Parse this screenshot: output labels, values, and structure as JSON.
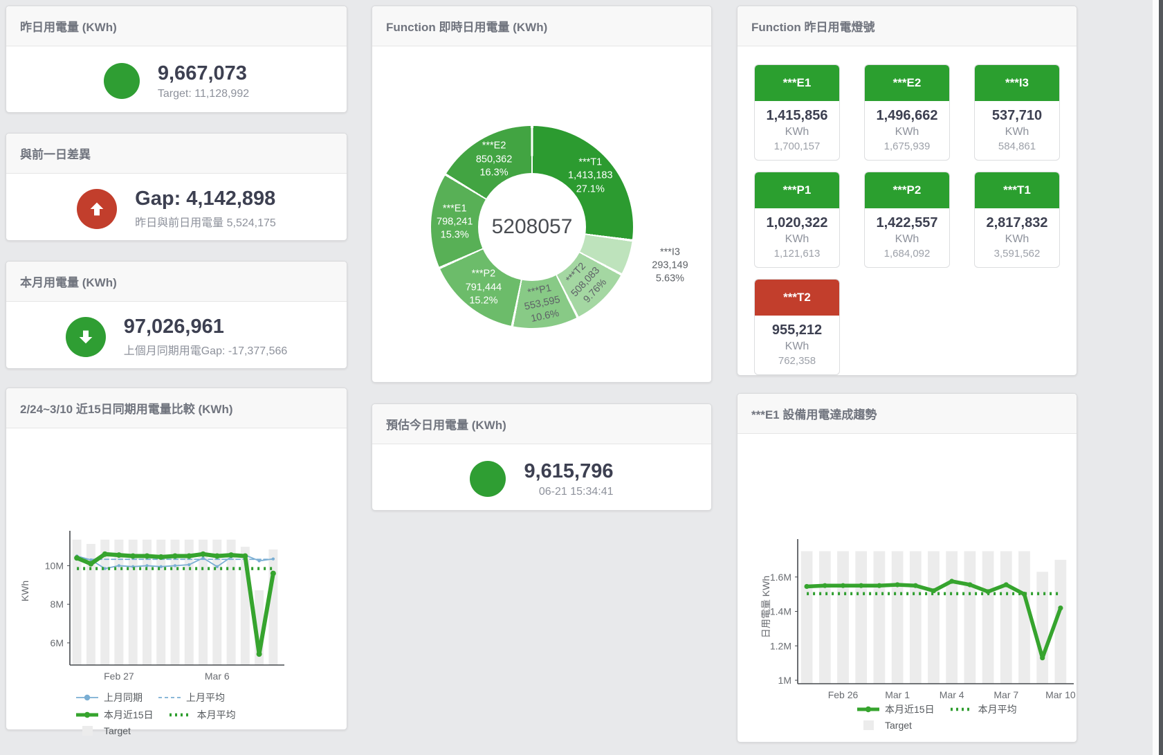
{
  "colors": {
    "green": "#2f9e33",
    "tile_green": "#2b9f2f",
    "tile_red": "#c23e2c",
    "line_green": "#36a42e",
    "avg_green": "#2f9e2f",
    "blue": "#7aaed3",
    "bar_gray": "#ececec",
    "axis": "#45484d"
  },
  "cards": {
    "yesterday": {
      "title": "昨日用電量 (KWh)",
      "value": "9,667,073",
      "sub": "Target: 11,128,992"
    },
    "diff": {
      "title": "與前一日差異",
      "value": "Gap: 4,142,898",
      "sub": "昨日與前日用電量 5,524,175"
    },
    "month": {
      "title": "本月用電量 (KWh)",
      "value": "97,026,961",
      "sub": "上個月同期用電Gap: -17,377,566"
    },
    "realtime": {
      "title": "Function 即時日用電量 (KWh)"
    },
    "lights": {
      "title": "Function 昨日用電燈號",
      "tiles": [
        {
          "name": "***E1",
          "value": "1,415,856",
          "unit": "KWh",
          "target": "1,700,157",
          "status": "green"
        },
        {
          "name": "***E2",
          "value": "1,496,662",
          "unit": "KWh",
          "target": "1,675,939",
          "status": "green"
        },
        {
          "name": "***I3",
          "value": "537,710",
          "unit": "KWh",
          "target": "584,861",
          "status": "green"
        },
        {
          "name": "***P1",
          "value": "1,020,322",
          "unit": "KWh",
          "target": "1,121,613",
          "status": "green"
        },
        {
          "name": "***P2",
          "value": "1,422,557",
          "unit": "KWh",
          "target": "1,684,092",
          "status": "green"
        },
        {
          "name": "***T1",
          "value": "2,817,832",
          "unit": "KWh",
          "target": "3,591,562",
          "status": "green"
        },
        {
          "name": "***T2",
          "value": "955,212",
          "unit": "KWh",
          "target": "762,358",
          "status": "red"
        }
      ]
    },
    "compare": {
      "title": "2/24~3/10 近15日同期用電量比較 (KWh)"
    },
    "estimate": {
      "title": "預估今日用電量 (KWh)",
      "value": "9,615,796",
      "sub": "06-21 15:34:41"
    },
    "e1trend": {
      "title": "***E1 設備用電達成趨勢"
    }
  },
  "chart_data": [
    {
      "id": "donut",
      "type": "pie",
      "title": "Function 即時日用電量 (KWh)",
      "center_total": "5208057",
      "slices": [
        {
          "name": "***T1",
          "value": "1,413,183",
          "pct": "27.1%",
          "pct_num": 27.1,
          "color": "#2c9b30",
          "label": "inside",
          "text_color": "#ffffff",
          "rotation": 0
        },
        {
          "name": "***I3",
          "value": "293,149",
          "pct": "5.63%",
          "pct_num": 5.63,
          "color": "#bee3bc",
          "label": "outside",
          "text_color": "#5d6166",
          "rotation": 0
        },
        {
          "name": "***T2",
          "value": "508,083",
          "pct": "9.76%",
          "pct_num": 9.76,
          "color": "#a4d7a2",
          "label": "inside",
          "text_color": "#5d6166",
          "rotation": -47
        },
        {
          "name": "***P1",
          "value": "553,595",
          "pct": "10.6%",
          "pct_num": 10.6,
          "color": "#88ca86",
          "label": "inside",
          "text_color": "#5d6166",
          "rotation": -12
        },
        {
          "name": "***P2",
          "value": "791,444",
          "pct": "15.2%",
          "pct_num": 15.2,
          "color": "#6cbc6a",
          "label": "inside",
          "text_color": "#ffffff",
          "rotation": 0
        },
        {
          "name": "***E1",
          "value": "798,241",
          "pct": "15.3%",
          "pct_num": 15.3,
          "color": "#58b056",
          "label": "inside",
          "text_color": "#ffffff",
          "rotation": 0
        },
        {
          "name": "***E2",
          "value": "850,362",
          "pct": "16.3%",
          "pct_num": 16.3,
          "color": "#42a442",
          "label": "inside",
          "text_color": "#ffffff",
          "rotation": 0
        }
      ]
    },
    {
      "id": "compare15",
      "type": "line",
      "title": "2/24~3/10 近15日同期用電量比較 (KWh)",
      "ylabel": "KWh",
      "x": [
        "2/24",
        "2/25",
        "2/26",
        "2/27",
        "2/28",
        "3/1",
        "3/2",
        "3/3",
        "3/4",
        "3/5",
        "3/6",
        "3/7",
        "3/8",
        "3/9",
        "3/10"
      ],
      "x_tick_labels": [
        {
          "index": 3,
          "label": "Feb 27"
        },
        {
          "index": 10,
          "label": "Mar 6"
        }
      ],
      "y_ticks": [
        {
          "v": 6,
          "label": "6M"
        },
        {
          "v": 8,
          "label": "8M"
        },
        {
          "v": 10,
          "label": "10M"
        }
      ],
      "ylim": [
        4.85,
        11.45
      ],
      "unit": "M KWh",
      "series": [
        {
          "name": "Target",
          "type": "bar",
          "color": "#ececec",
          "values": [
            11.35,
            11.13,
            11.35,
            11.35,
            11.35,
            11.35,
            11.35,
            11.35,
            11.35,
            11.35,
            11.35,
            11.35,
            10.98,
            8.73,
            10.84
          ]
        },
        {
          "name": "上月同期",
          "type": "line",
          "style": "solid",
          "width": 1.8,
          "marker": 2.2,
          "color": "#7aaed3",
          "values": [
            10.5,
            10.3,
            9.85,
            10.0,
            9.95,
            10.0,
            9.95,
            10.0,
            10.05,
            10.4,
            9.95,
            10.45,
            10.55,
            10.25,
            10.35
          ]
        },
        {
          "name": "上月平均",
          "type": "line",
          "style": "dashed",
          "width": 1.8,
          "color": "#7aaed3",
          "constant": 10.33
        },
        {
          "name": "本月平均",
          "type": "line",
          "style": "dotted",
          "width": 4.5,
          "color": "#2f9e2f",
          "constant": 9.85
        },
        {
          "name": "本月近15日",
          "type": "line",
          "style": "solid",
          "width": 6,
          "marker": 4,
          "color": "#36a42e",
          "values": [
            10.4,
            10.1,
            10.6,
            10.55,
            10.5,
            10.5,
            10.45,
            10.5,
            10.5,
            10.6,
            10.5,
            10.55,
            10.5,
            5.42,
            9.6
          ]
        }
      ],
      "legend_rows": [
        [
          "上月同期",
          "上月平均"
        ],
        [
          "本月近15日",
          "本月平均"
        ],
        [
          "Target"
        ]
      ]
    },
    {
      "id": "e1trend",
      "type": "line",
      "title": "***E1 設備用電達成趨勢",
      "ylabel": "日用電量 KWh",
      "x": [
        "2/24",
        "2/25",
        "2/26",
        "2/27",
        "2/28",
        "3/1",
        "3/2",
        "3/3",
        "3/4",
        "3/5",
        "3/6",
        "3/7",
        "3/8",
        "3/9",
        "3/10"
      ],
      "x_tick_labels": [
        {
          "index": 2,
          "label": "Feb 26"
        },
        {
          "index": 5,
          "label": "Mar 1"
        },
        {
          "index": 8,
          "label": "Mar 4"
        },
        {
          "index": 11,
          "label": "Mar 7"
        },
        {
          "index": 14,
          "label": "Mar 10"
        }
      ],
      "y_ticks": [
        {
          "v": 1.0,
          "label": "1M"
        },
        {
          "v": 1.2,
          "label": "1.2M"
        },
        {
          "v": 1.4,
          "label": "1.4M"
        },
        {
          "v": 1.6,
          "label": "1.6M"
        }
      ],
      "ylim": [
        0.98,
        1.78
      ],
      "unit": "M KWh",
      "series": [
        {
          "name": "Target",
          "type": "bar",
          "color": "#ececec",
          "values": [
            1.75,
            1.75,
            1.75,
            1.75,
            1.75,
            1.75,
            1.75,
            1.75,
            1.75,
            1.75,
            1.75,
            1.75,
            1.75,
            1.63,
            1.7
          ]
        },
        {
          "name": "本月平均",
          "type": "line",
          "style": "dotted",
          "width": 4.5,
          "color": "#2f9e2f",
          "constant": 1.503
        },
        {
          "name": "本月近15日",
          "type": "line",
          "style": "solid",
          "width": 5.5,
          "marker": 3.6,
          "color": "#36a42e",
          "values": [
            1.545,
            1.55,
            1.55,
            1.55,
            1.55,
            1.555,
            1.55,
            1.52,
            1.575,
            1.555,
            1.515,
            1.555,
            1.5,
            1.13,
            1.42
          ]
        }
      ],
      "legend_rows": [
        [
          "本月近15日",
          "本月平均"
        ],
        [
          "Target"
        ]
      ]
    }
  ]
}
